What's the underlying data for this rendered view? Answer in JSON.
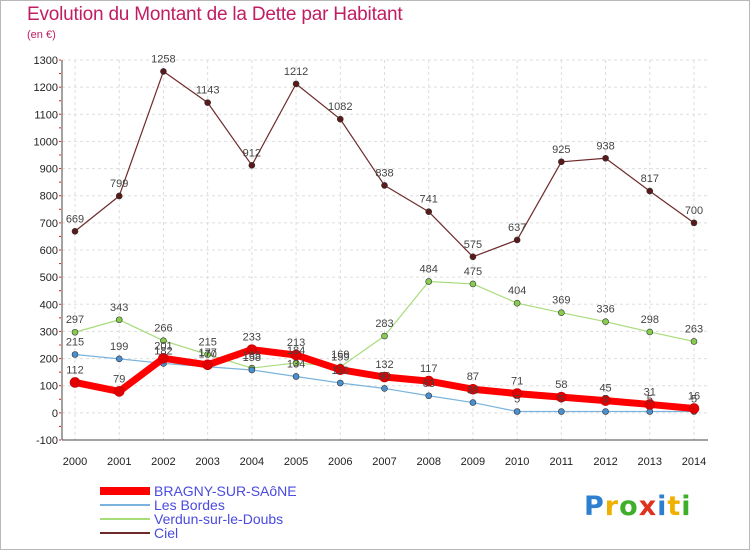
{
  "title": "Evolution du Montant de la Dette par Habitant",
  "unit": "(en €)",
  "logo": {
    "letters": [
      "P",
      "r",
      "o",
      "x",
      "i",
      "t",
      "i"
    ],
    "colors": [
      "#2f7fd0",
      "#f0b000",
      "#3fae2a",
      "#e03020",
      "#2f7fd0",
      "#f0b000",
      "#3fae2a"
    ]
  },
  "chart_data": {
    "type": "line",
    "x": [
      "2000",
      "2001",
      "2002",
      "2003",
      "2004",
      "2005",
      "2006",
      "2007",
      "2008",
      "2009",
      "2010",
      "2011",
      "2012",
      "2013",
      "2014"
    ],
    "ylim": [
      -100,
      1300
    ],
    "yticks": [
      "-100",
      "0",
      "100",
      "200",
      "300",
      "400",
      "500",
      "600",
      "700",
      "800",
      "900",
      "1000",
      "1100",
      "1200",
      "1300"
    ],
    "grid": true,
    "legend_position": "bottom-left",
    "series": [
      {
        "name": "BRAGNY-SUR-SAôNE",
        "color": "#ff0000",
        "marker": "#e00000",
        "width": 7,
        "values": [
          112,
          79,
          201,
          177,
          233,
          213,
          159,
          132,
          117,
          87,
          71,
          58,
          45,
          31,
          16
        ],
        "labels": [
          "112",
          "79",
          "201",
          "177",
          "233",
          "213",
          "159",
          "132",
          "117",
          "87",
          "71",
          "58",
          "45",
          "31",
          "16"
        ]
      },
      {
        "name": "Les Bordes",
        "color": "#7ab3dd",
        "marker": "#4a90d0",
        "width": 1.2,
        "values": [
          215,
          199,
          182,
          170,
          158,
          134,
          110,
          90,
          63,
          38,
          5,
          5,
          5,
          5,
          5
        ],
        "labels": [
          "215",
          "199",
          "182",
          "170",
          "158",
          "134",
          "110",
          "90",
          "63",
          "38",
          "5",
          "5",
          "5",
          "5",
          "5"
        ]
      },
      {
        "name": "Verdun-sur-le-Doubs",
        "color": "#a8dc7a",
        "marker": "#86cc4e",
        "width": 1.2,
        "values": [
          297,
          343,
          266,
          215,
          165,
          184,
          169,
          283,
          484,
          475,
          404,
          369,
          336,
          298,
          263
        ],
        "labels": [
          "297",
          "343",
          "266",
          "215",
          "165",
          "184",
          "169",
          "283",
          "484",
          "475",
          "404",
          "369",
          "336",
          "298",
          "263"
        ]
      },
      {
        "name": "Ciel",
        "color": "#6e2a2a",
        "marker": "#5a1a1a",
        "width": 1.2,
        "values": [
          669,
          799,
          1258,
          1143,
          912,
          1212,
          1082,
          838,
          741,
          575,
          637,
          925,
          938,
          817,
          700
        ],
        "labels": [
          "669",
          "799",
          "1258",
          "1143",
          "912",
          "1212",
          "1082",
          "838",
          "741",
          "575",
          "637",
          "925",
          "938",
          "817",
          "700"
        ]
      }
    ]
  }
}
